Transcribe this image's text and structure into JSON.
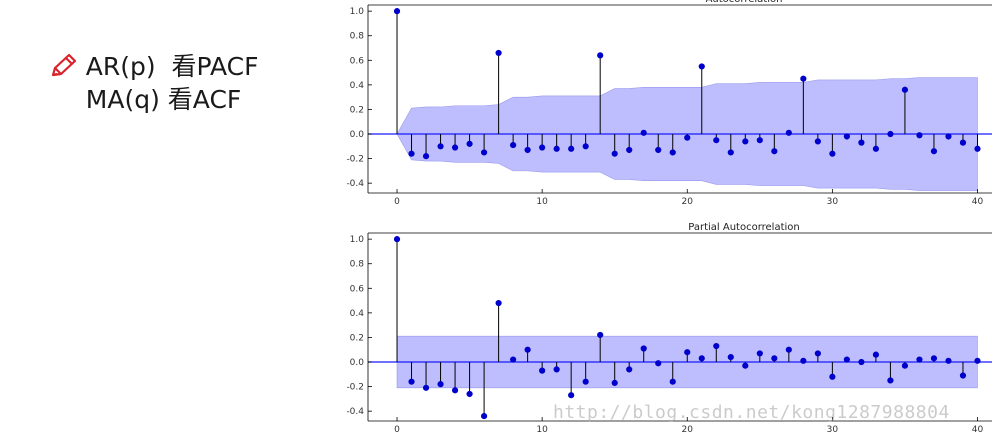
{
  "notes": {
    "line1": "AR(p)  看PACF",
    "line2": "MA(q) 看ACF",
    "icon": "pencil-icon",
    "icon_color": "#d9232d"
  },
  "watermark": "http://blog.csdn.net/kong1287988804",
  "colors": {
    "stem": "#000000",
    "marker": "#0000cc",
    "band": "#b3b3ff",
    "band_edge": "#9999ee",
    "zero_line": "#1a1aff"
  },
  "chart_data": [
    {
      "type": "stem",
      "title": "Autocorrelation",
      "xlim": [
        -2,
        41
      ],
      "ylim": [
        -0.48,
        1.05
      ],
      "xticks": [
        0,
        10,
        20,
        30,
        40
      ],
      "yticks": [
        -0.4,
        -0.2,
        0.0,
        0.2,
        0.4,
        0.6,
        0.8,
        1.0
      ],
      "lags": [
        0,
        1,
        2,
        3,
        4,
        5,
        6,
        7,
        8,
        9,
        10,
        11,
        12,
        13,
        14,
        15,
        16,
        17,
        18,
        19,
        20,
        21,
        22,
        23,
        24,
        25,
        26,
        27,
        28,
        29,
        30,
        31,
        32,
        33,
        34,
        35,
        36,
        37,
        38,
        39,
        40
      ],
      "values": [
        1.0,
        -0.16,
        -0.18,
        -0.1,
        -0.11,
        -0.08,
        -0.15,
        0.66,
        -0.09,
        -0.13,
        -0.11,
        -0.12,
        -0.12,
        -0.1,
        0.64,
        -0.16,
        -0.13,
        0.01,
        -0.13,
        -0.15,
        -0.03,
        0.55,
        -0.05,
        -0.15,
        -0.06,
        -0.05,
        -0.14,
        0.01,
        0.45,
        -0.06,
        -0.16,
        -0.02,
        -0.07,
        -0.12,
        0.0,
        0.36,
        -0.01,
        -0.14,
        -0.02,
        -0.07,
        -0.12
      ],
      "confint_upper": [
        0.0,
        0.21,
        0.22,
        0.22,
        0.23,
        0.23,
        0.23,
        0.24,
        0.3,
        0.3,
        0.31,
        0.31,
        0.31,
        0.31,
        0.31,
        0.37,
        0.37,
        0.38,
        0.38,
        0.38,
        0.38,
        0.38,
        0.41,
        0.41,
        0.41,
        0.42,
        0.42,
        0.42,
        0.42,
        0.44,
        0.44,
        0.44,
        0.44,
        0.44,
        0.45,
        0.45,
        0.46,
        0.46,
        0.46,
        0.46,
        0.46
      ],
      "grid": false
    },
    {
      "type": "stem",
      "title": "Partial Autocorrelation",
      "xlim": [
        -2,
        41
      ],
      "ylim": [
        -0.48,
        1.05
      ],
      "xticks": [
        0,
        10,
        20,
        30,
        40
      ],
      "yticks": [
        -0.4,
        -0.2,
        0.0,
        0.2,
        0.4,
        0.6,
        0.8,
        1.0
      ],
      "lags": [
        0,
        1,
        2,
        3,
        4,
        5,
        6,
        7,
        8,
        9,
        10,
        11,
        12,
        13,
        14,
        15,
        16,
        17,
        18,
        19,
        20,
        21,
        22,
        23,
        24,
        25,
        26,
        27,
        28,
        29,
        30,
        31,
        32,
        33,
        34,
        35,
        36,
        37,
        38,
        39,
        40
      ],
      "values": [
        1.0,
        -0.16,
        -0.21,
        -0.18,
        -0.23,
        -0.26,
        -0.44,
        0.48,
        0.02,
        0.1,
        -0.07,
        -0.06,
        -0.27,
        -0.16,
        0.22,
        -0.17,
        -0.06,
        0.11,
        -0.01,
        -0.16,
        0.08,
        0.03,
        0.13,
        0.04,
        -0.03,
        0.07,
        0.03,
        0.1,
        0.01,
        0.07,
        -0.12,
        0.02,
        0.0,
        0.06,
        -0.15,
        -0.03,
        0.02,
        0.03,
        0.01,
        -0.11,
        0.01
      ],
      "confint": 0.21,
      "grid": false
    }
  ]
}
